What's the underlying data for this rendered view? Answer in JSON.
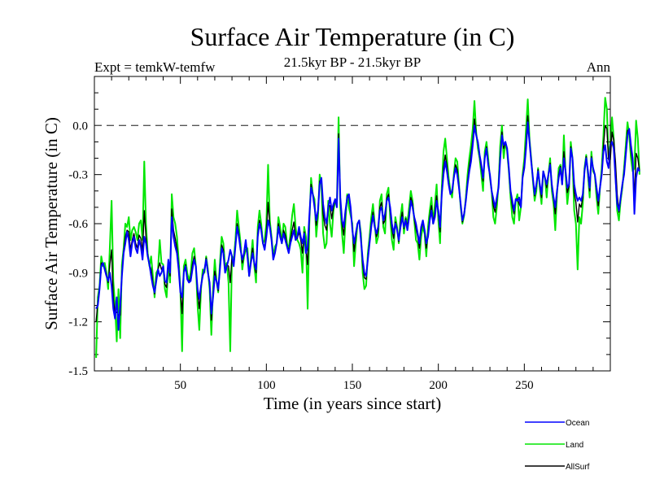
{
  "chart_data": {
    "type": "line",
    "title": "Surface Air Temperature (in C)",
    "subtitle_left": "Expt = temkW-temfw",
    "subtitle_center": "21.5kyr BP - 21.5kyr BP",
    "subtitle_right": "Ann",
    "xlabel": "Time (in years since start)",
    "ylabel": "Surface Air Temperature (in C)",
    "xlim": [
      0,
      300
    ],
    "ylim": [
      -1.5,
      0.3
    ],
    "xticks": [
      50,
      100,
      150,
      200,
      250
    ],
    "xtick_labels": [
      "50",
      "100",
      "150",
      "200",
      "250"
    ],
    "xminor_step": 10,
    "yticks": [
      -1.5,
      -1.2,
      -0.9,
      -0.6,
      -0.3,
      0.0
    ],
    "ytick_labels": [
      "-1.5",
      "-1.2",
      "-0.9",
      "-0.6",
      "-0.3",
      "0.0"
    ],
    "yminor_step": 0.1,
    "reference_line": {
      "y": 0.0,
      "style": "dashed"
    },
    "legend_position": "bottom-right (below plot)",
    "x_start": 1,
    "series": [
      {
        "name": "Ocean",
        "color": "#0000ff",
        "values": [
          -1.12,
          -1.1,
          -1.0,
          -0.86,
          -0.84,
          -0.88,
          -0.92,
          -0.95,
          -0.9,
          -0.98,
          -1.12,
          -1.18,
          -1.05,
          -1.25,
          -1.1,
          -0.92,
          -0.78,
          -0.72,
          -0.65,
          -0.7,
          -0.8,
          -0.72,
          -0.68,
          -0.75,
          -0.78,
          -0.7,
          -0.74,
          -0.82,
          -0.68,
          -0.72,
          -0.8,
          -0.85,
          -0.92,
          -0.98,
          -1.02,
          -0.95,
          -0.88,
          -0.92,
          -0.9,
          -0.86,
          -0.95,
          -0.96,
          -0.82,
          -0.9,
          -0.56,
          -0.68,
          -0.74,
          -0.78,
          -0.88,
          -1.02,
          -1.05,
          -0.9,
          -0.86,
          -0.94,
          -0.96,
          -0.95,
          -0.88,
          -0.82,
          -0.86,
          -1.0,
          -1.06,
          -0.98,
          -0.92,
          -0.88,
          -0.82,
          -0.9,
          -0.96,
          -1.15,
          -1.05,
          -0.92,
          -0.95,
          -1.0,
          -0.88,
          -0.75,
          -0.78,
          -0.9,
          -0.86,
          -0.82,
          -0.76,
          -0.8,
          -0.86,
          -0.74,
          -0.62,
          -0.68,
          -0.76,
          -0.82,
          -0.78,
          -0.7,
          -0.8,
          -0.92,
          -0.84,
          -0.78,
          -0.84,
          -0.88,
          -0.68,
          -0.6,
          -0.64,
          -0.72,
          -0.76,
          -0.68,
          -0.58,
          -0.62,
          -0.7,
          -0.82,
          -0.78,
          -0.72,
          -0.62,
          -0.68,
          -0.72,
          -0.66,
          -0.7,
          -0.74,
          -0.78,
          -0.72,
          -0.68,
          -0.64,
          -0.7,
          -0.68,
          -0.62,
          -0.68,
          -0.72,
          -0.66,
          -0.78,
          -0.74,
          -0.55,
          -0.38,
          -0.42,
          -0.5,
          -0.58,
          -0.52,
          -0.36,
          -0.32,
          -0.48,
          -0.56,
          -0.6,
          -0.5,
          -0.44,
          -0.52,
          -0.48,
          -0.45,
          -0.5,
          -0.08,
          -0.44,
          -0.58,
          -0.62,
          -0.52,
          -0.44,
          -0.42,
          -0.5,
          -0.64,
          -0.72,
          -0.66,
          -0.6,
          -0.58,
          -0.7,
          -0.82,
          -0.9,
          -0.92,
          -0.82,
          -0.72,
          -0.62,
          -0.55,
          -0.62,
          -0.66,
          -0.62,
          -0.52,
          -0.5,
          -0.58,
          -0.54,
          -0.46,
          -0.44,
          -0.5,
          -0.6,
          -0.66,
          -0.6,
          -0.64,
          -0.7,
          -0.62,
          -0.56,
          -0.62,
          -0.58,
          -0.64,
          -0.56,
          -0.46,
          -0.5,
          -0.56,
          -0.6,
          -0.66,
          -0.72,
          -0.62,
          -0.58,
          -0.64,
          -0.72,
          -0.68,
          -0.58,
          -0.52,
          -0.6,
          -0.56,
          -0.46,
          -0.52,
          -0.62,
          -0.42,
          -0.3,
          -0.22,
          -0.28,
          -0.36,
          -0.42,
          -0.4,
          -0.32,
          -0.26,
          -0.3,
          -0.38,
          -0.48,
          -0.58,
          -0.54,
          -0.46,
          -0.36,
          -0.28,
          -0.22,
          -0.12,
          0.0,
          -0.06,
          -0.1,
          -0.18,
          -0.24,
          -0.32,
          -0.2,
          -0.14,
          -0.24,
          -0.3,
          -0.4,
          -0.45,
          -0.5,
          -0.44,
          -0.38,
          -0.2,
          -0.06,
          -0.12,
          -0.1,
          -0.14,
          -0.26,
          -0.4,
          -0.46,
          -0.52,
          -0.45,
          -0.46,
          -0.44,
          -0.5,
          -0.32,
          -0.26,
          -0.14,
          0.02,
          -0.1,
          -0.22,
          -0.32,
          -0.42,
          -0.36,
          -0.28,
          -0.36,
          -0.42,
          -0.28,
          -0.32,
          -0.36,
          -0.3,
          -0.24,
          -0.36,
          -0.44,
          -0.5,
          -0.4,
          -0.32,
          -0.26,
          -0.36,
          -0.2,
          -0.28,
          -0.38,
          -0.36,
          -0.14,
          -0.2,
          -0.36,
          -0.42,
          -0.46,
          -0.44,
          -0.46,
          -0.42,
          -0.28,
          -0.2,
          -0.28,
          -0.38,
          -0.2,
          -0.26,
          -0.3,
          -0.38,
          -0.46,
          -0.38,
          -0.3,
          -0.16,
          -0.12,
          -0.22,
          -0.26,
          -0.12,
          -0.1,
          -0.14,
          -0.32,
          -0.48,
          -0.52,
          -0.44,
          -0.36,
          -0.3,
          -0.18,
          -0.06,
          -0.02,
          -0.12,
          -0.2,
          -0.54,
          -0.32,
          -0.26,
          -0.28
        ]
      },
      {
        "name": "Land",
        "color": "#00e600",
        "values": [
          -1.42,
          -1.05,
          -0.98,
          -0.8,
          -0.86,
          -0.84,
          -0.9,
          -1.0,
          -0.74,
          -0.46,
          -0.95,
          -1.1,
          -1.32,
          -1.0,
          -1.3,
          -0.85,
          -0.75,
          -0.6,
          -0.62,
          -0.56,
          -0.7,
          -0.64,
          -0.62,
          -0.65,
          -0.7,
          -0.6,
          -0.58,
          -0.7,
          -0.22,
          -0.6,
          -0.78,
          -0.86,
          -0.8,
          -0.92,
          -1.05,
          -0.9,
          -0.88,
          -0.7,
          -0.84,
          -0.85,
          -1.0,
          -1.05,
          -0.85,
          -0.96,
          -0.42,
          -0.56,
          -0.6,
          -0.68,
          -0.82,
          -1.0,
          -1.38,
          -0.86,
          -0.82,
          -0.9,
          -0.95,
          -0.9,
          -0.78,
          -0.75,
          -0.86,
          -1.1,
          -1.25,
          -1.0,
          -0.88,
          -0.9,
          -0.8,
          -0.88,
          -1.0,
          -1.28,
          -1.0,
          -0.82,
          -0.95,
          -1.02,
          -0.84,
          -0.68,
          -0.72,
          -0.86,
          -0.84,
          -0.96,
          -1.38,
          -0.8,
          -0.82,
          -0.7,
          -0.52,
          -0.62,
          -0.72,
          -0.88,
          -0.8,
          -0.76,
          -0.75,
          -0.92,
          -0.82,
          -0.7,
          -0.86,
          -0.96,
          -0.62,
          -0.52,
          -0.6,
          -0.72,
          -0.7,
          -0.6,
          -0.24,
          -0.58,
          -0.68,
          -0.8,
          -0.74,
          -0.72,
          -0.56,
          -0.62,
          -0.72,
          -0.6,
          -0.62,
          -0.72,
          -0.76,
          -0.66,
          -0.55,
          -0.48,
          -0.62,
          -0.7,
          -0.72,
          -0.76,
          -0.9,
          -0.62,
          -0.68,
          -1.12,
          -0.6,
          -0.32,
          -0.42,
          -0.45,
          -0.68,
          -0.56,
          -0.3,
          -0.36,
          -0.66,
          -0.75,
          -0.72,
          -0.46,
          -0.6,
          -0.68,
          -0.52,
          -0.46,
          -0.48,
          0.05,
          -0.5,
          -0.66,
          -0.78,
          -0.58,
          -0.42,
          -0.5,
          -0.55,
          -0.6,
          -0.86,
          -0.72,
          -0.6,
          -0.58,
          -0.66,
          -0.9,
          -1.0,
          -0.98,
          -0.78,
          -0.68,
          -0.56,
          -0.48,
          -0.6,
          -0.72,
          -0.68,
          -0.46,
          -0.42,
          -0.62,
          -0.66,
          -0.42,
          -0.38,
          -0.56,
          -0.7,
          -0.76,
          -0.56,
          -0.62,
          -0.72,
          -0.56,
          -0.48,
          -0.66,
          -0.56,
          -0.6,
          -0.5,
          -0.4,
          -0.46,
          -0.58,
          -0.7,
          -0.72,
          -0.82,
          -0.68,
          -0.62,
          -0.66,
          -0.8,
          -0.62,
          -0.52,
          -0.44,
          -0.6,
          -0.48,
          -0.36,
          -0.58,
          -0.72,
          -0.38,
          -0.16,
          -0.08,
          -0.2,
          -0.32,
          -0.4,
          -0.44,
          -0.3,
          -0.2,
          -0.22,
          -0.36,
          -0.5,
          -0.6,
          -0.55,
          -0.44,
          -0.3,
          -0.2,
          -0.12,
          -0.02,
          0.15,
          -0.04,
          -0.14,
          -0.2,
          -0.3,
          -0.4,
          -0.16,
          -0.1,
          -0.2,
          -0.32,
          -0.4,
          -0.56,
          -0.6,
          -0.5,
          -0.36,
          -0.12,
          0.0,
          -0.2,
          -0.1,
          -0.16,
          -0.28,
          -0.44,
          -0.56,
          -0.6,
          -0.46,
          -0.42,
          -0.58,
          -0.5,
          -0.3,
          -0.2,
          -0.02,
          0.16,
          -0.08,
          -0.2,
          -0.34,
          -0.46,
          -0.4,
          -0.26,
          -0.38,
          -0.48,
          -0.28,
          -0.32,
          -0.44,
          -0.3,
          -0.2,
          -0.4,
          -0.48,
          -0.64,
          -0.42,
          -0.26,
          -0.24,
          -0.36,
          -0.06,
          -0.3,
          -0.48,
          -0.38,
          -0.1,
          -0.2,
          -0.52,
          -0.6,
          -0.88,
          -0.56,
          -0.6,
          -0.48,
          -0.26,
          -0.18,
          -0.3,
          -0.44,
          -0.16,
          -0.28,
          -0.3,
          -0.44,
          -0.54,
          -0.38,
          -0.26,
          -0.06,
          0.17,
          0.1,
          -0.2,
          -0.12,
          0.05,
          -0.08,
          -0.3,
          -0.52,
          -0.58,
          -0.46,
          -0.38,
          -0.26,
          -0.12,
          0.02,
          -0.06,
          -0.2,
          -0.28,
          -0.26,
          0.03,
          -0.08,
          -0.3
        ]
      },
      {
        "name": "AllSurf",
        "color": "#000000",
        "values": [
          -1.2,
          -1.08,
          -0.99,
          -0.84,
          -0.85,
          -0.87,
          -0.91,
          -0.96,
          -0.85,
          -0.76,
          -1.06,
          -1.15,
          -1.14,
          -1.16,
          -1.16,
          -0.9,
          -0.77,
          -0.68,
          -0.64,
          -0.65,
          -0.76,
          -0.7,
          -0.66,
          -0.72,
          -0.75,
          -0.67,
          -0.69,
          -0.78,
          -0.52,
          -0.68,
          -0.79,
          -0.85,
          -0.88,
          -0.96,
          -1.03,
          -0.93,
          -0.88,
          -0.84,
          -0.88,
          -0.86,
          -0.97,
          -0.99,
          -0.83,
          -0.92,
          -0.51,
          -0.64,
          -0.69,
          -0.75,
          -0.86,
          -1.01,
          -1.15,
          -0.89,
          -0.85,
          -0.93,
          -0.96,
          -0.93,
          -0.85,
          -0.8,
          -0.86,
          -1.03,
          -1.12,
          -0.99,
          -0.91,
          -0.89,
          -0.81,
          -0.89,
          -0.97,
          -1.19,
          -1.03,
          -0.89,
          -0.95,
          -1.01,
          -0.87,
          -0.73,
          -0.76,
          -0.89,
          -0.85,
          -0.86,
          -0.96,
          -0.8,
          -0.85,
          -0.73,
          -0.6,
          -0.66,
          -0.75,
          -0.84,
          -0.79,
          -0.72,
          -0.79,
          -0.92,
          -0.83,
          -0.75,
          -0.85,
          -0.9,
          -0.66,
          -0.58,
          -0.63,
          -0.72,
          -0.74,
          -0.65,
          -0.47,
          -0.61,
          -0.69,
          -0.81,
          -0.77,
          -0.72,
          -0.6,
          -0.66,
          -0.72,
          -0.64,
          -0.67,
          -0.73,
          -0.77,
          -0.7,
          -0.64,
          -0.59,
          -0.68,
          -0.69,
          -0.65,
          -0.7,
          -0.78,
          -0.65,
          -0.75,
          -0.85,
          -0.57,
          -0.36,
          -0.42,
          -0.48,
          -0.61,
          -0.53,
          -0.34,
          -0.33,
          -0.54,
          -0.61,
          -0.64,
          -0.49,
          -0.49,
          -0.57,
          -0.5,
          -0.45,
          -0.49,
          -0.05,
          -0.46,
          -0.6,
          -0.67,
          -0.54,
          -0.43,
          -0.44,
          -0.51,
          -0.63,
          -0.77,
          -0.68,
          -0.6,
          -0.58,
          -0.69,
          -0.85,
          -0.93,
          -0.94,
          -0.81,
          -0.71,
          -0.6,
          -0.53,
          -0.61,
          -0.68,
          -0.64,
          -0.5,
          -0.47,
          -0.6,
          -0.58,
          -0.45,
          -0.42,
          -0.52,
          -0.63,
          -0.69,
          -0.59,
          -0.63,
          -0.71,
          -0.6,
          -0.53,
          -0.63,
          -0.57,
          -0.62,
          -0.54,
          -0.44,
          -0.48,
          -0.57,
          -0.63,
          -0.68,
          -0.75,
          -0.64,
          -0.59,
          -0.65,
          -0.75,
          -0.66,
          -0.56,
          -0.49,
          -0.6,
          -0.53,
          -0.43,
          -0.54,
          -0.65,
          -0.41,
          -0.26,
          -0.18,
          -0.25,
          -0.35,
          -0.41,
          -0.41,
          -0.31,
          -0.24,
          -0.27,
          -0.37,
          -0.49,
          -0.59,
          -0.54,
          -0.45,
          -0.34,
          -0.25,
          -0.18,
          -0.09,
          0.04,
          -0.05,
          -0.11,
          -0.19,
          -0.26,
          -0.34,
          -0.19,
          -0.13,
          -0.23,
          -0.31,
          -0.4,
          -0.49,
          -0.53,
          -0.46,
          -0.37,
          -0.18,
          -0.04,
          -0.14,
          -0.1,
          -0.15,
          -0.27,
          -0.41,
          -0.49,
          -0.54,
          -0.45,
          -0.45,
          -0.48,
          -0.5,
          -0.31,
          -0.24,
          -0.1,
          0.06,
          -0.09,
          -0.21,
          -0.33,
          -0.43,
          -0.37,
          -0.27,
          -0.37,
          -0.44,
          -0.28,
          -0.32,
          -0.38,
          -0.3,
          -0.23,
          -0.37,
          -0.45,
          -0.54,
          -0.41,
          -0.3,
          -0.25,
          -0.36,
          -0.16,
          -0.28,
          -0.41,
          -0.37,
          -0.13,
          -0.2,
          -0.41,
          -0.47,
          -0.59,
          -0.48,
          -0.5,
          -0.44,
          -0.27,
          -0.19,
          -0.29,
          -0.4,
          -0.19,
          -0.27,
          -0.3,
          -0.4,
          -0.49,
          -0.38,
          -0.29,
          -0.13,
          0.0,
          -0.02,
          -0.21,
          -0.21,
          -0.04,
          -0.09,
          -0.22,
          -0.42,
          -0.53,
          -0.45,
          -0.37,
          -0.28,
          -0.16,
          -0.03,
          -0.03,
          -0.15,
          -0.23,
          -0.44,
          -0.17,
          -0.2,
          -0.28
        ]
      }
    ]
  }
}
